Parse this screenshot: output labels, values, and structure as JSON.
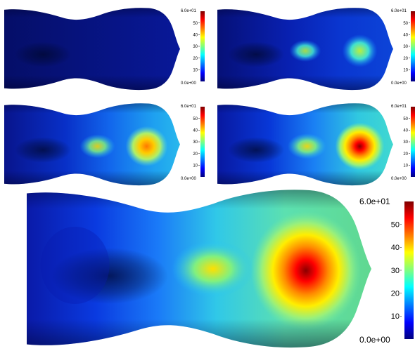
{
  "figure": {
    "colormap": {
      "name": "jet",
      "stops": [
        "#00007f",
        "#0000ff",
        "#007fff",
        "#00ffff",
        "#7fff7f",
        "#ffff00",
        "#ff7f00",
        "#ff0000",
        "#7f0000"
      ],
      "min_label": "0.0e+00",
      "max_label": "6.0e+01",
      "ticks": [
        "50",
        "40",
        "30",
        "20",
        "10"
      ],
      "tick_values": [
        50,
        40,
        30,
        20,
        10
      ],
      "range": [
        0,
        60
      ]
    },
    "panels": [
      {
        "id": "panel-1",
        "level": 0.0
      },
      {
        "id": "panel-2",
        "level": 0.45
      },
      {
        "id": "panel-3",
        "level": 0.75
      },
      {
        "id": "panel-4",
        "level": 0.9
      },
      {
        "id": "panel-main",
        "level": 1.0
      }
    ]
  }
}
